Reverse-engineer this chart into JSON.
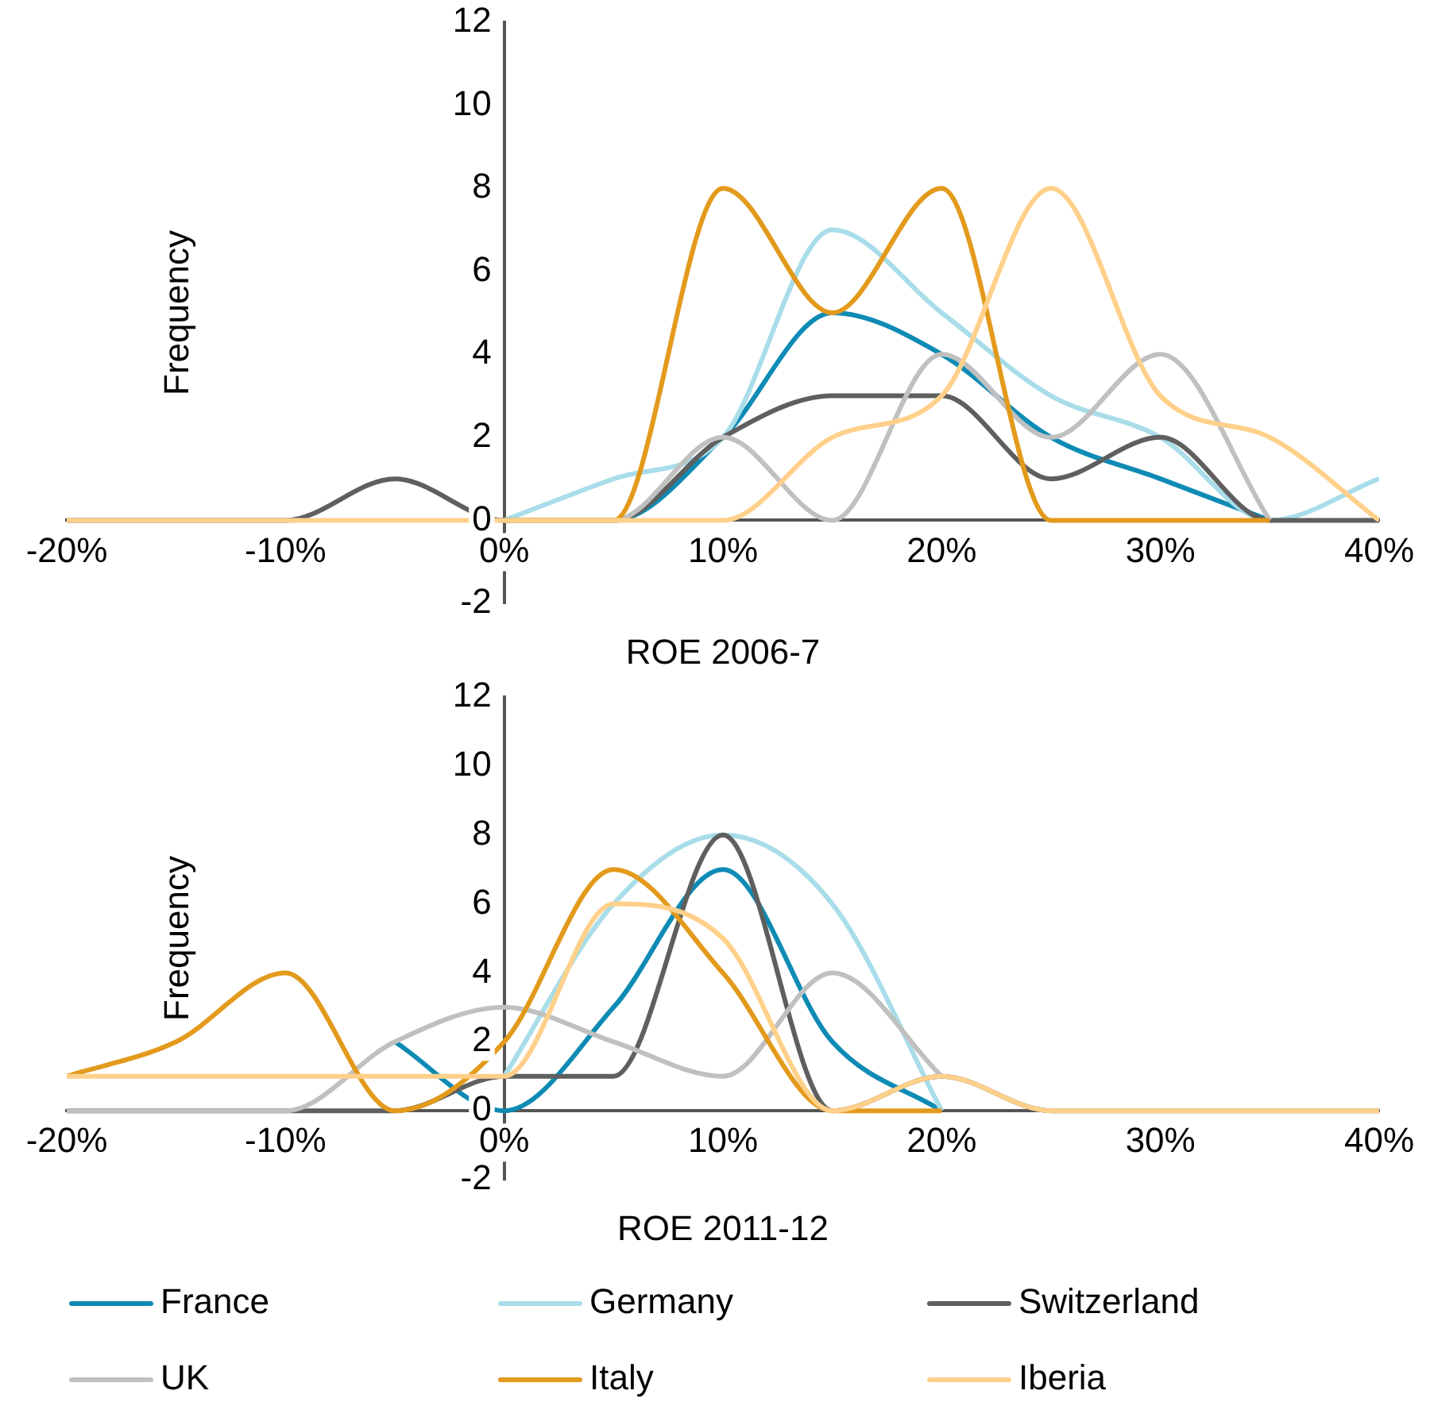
{
  "chart_data": [
    {
      "type": "line",
      "xlabel": "ROE 2006-7",
      "ylabel": "Frequency",
      "x": [
        -20,
        -15,
        -10,
        -5,
        0,
        5,
        10,
        15,
        20,
        25,
        30,
        35,
        40
      ],
      "xlim": [
        -20,
        40
      ],
      "xticks": [
        {
          "value": -20,
          "label": "-20%"
        },
        {
          "value": -10,
          "label": "-10%"
        },
        {
          "value": 0,
          "label": "0%"
        },
        {
          "value": 10,
          "label": "10%"
        },
        {
          "value": 20,
          "label": "20%"
        },
        {
          "value": 30,
          "label": "30%"
        },
        {
          "value": 40,
          "label": "40%"
        }
      ],
      "ylim": [
        -2,
        12
      ],
      "yticks": [
        -2,
        0,
        2,
        4,
        6,
        8,
        10,
        12
      ],
      "grid": false,
      "legend": false,
      "marker": "none",
      "series": [
        {
          "color": "#0e8bb5",
          "values": [
            null,
            null,
            null,
            null,
            0,
            0,
            2,
            5,
            4,
            2,
            1,
            0,
            null
          ]
        },
        {
          "color": "#a8dde9",
          "values": [
            null,
            null,
            null,
            null,
            0,
            1,
            2,
            7,
            5,
            3,
            2,
            0,
            1
          ]
        },
        {
          "color": "#5f5f5f",
          "values": [
            0,
            0,
            0,
            1,
            0,
            0,
            2,
            3,
            3,
            1,
            2,
            0,
            0
          ]
        },
        {
          "color": "#c0c0c0",
          "values": [
            null,
            null,
            null,
            null,
            0,
            0,
            2,
            0,
            4,
            2,
            4,
            0,
            null
          ]
        },
        {
          "color": "#e39a1c",
          "values": [
            null,
            null,
            null,
            null,
            0,
            0,
            8,
            5,
            8,
            0,
            0,
            0,
            null
          ]
        },
        {
          "color": "#ffd08a",
          "values": [
            0,
            0,
            0,
            0,
            0,
            0,
            0,
            2,
            3,
            8,
            3,
            2,
            0
          ]
        }
      ]
    },
    {
      "type": "line",
      "xlabel": "ROE 2011-12",
      "ylabel": "Frequency",
      "x": [
        -20,
        -15,
        -10,
        -5,
        0,
        5,
        10,
        15,
        20,
        25,
        30,
        35,
        40
      ],
      "xlim": [
        -20,
        40
      ],
      "xticks": [
        {
          "value": -20,
          "label": "-20%"
        },
        {
          "value": -10,
          "label": "-10%"
        },
        {
          "value": 0,
          "label": "0%"
        },
        {
          "value": 10,
          "label": "10%"
        },
        {
          "value": 20,
          "label": "20%"
        },
        {
          "value": 30,
          "label": "30%"
        },
        {
          "value": 40,
          "label": "40%"
        }
      ],
      "ylim": [
        -2,
        12
      ],
      "yticks": [
        -2,
        0,
        2,
        4,
        6,
        8,
        10,
        12
      ],
      "grid": false,
      "legend": "bottom",
      "marker": "none",
      "series": [
        {
          "name": "France",
          "color": "#0e8bb5",
          "values": [
            null,
            null,
            null,
            2,
            0,
            3,
            7,
            2,
            0,
            null,
            null,
            null,
            null
          ]
        },
        {
          "name": "Germany",
          "color": "#a8dde9",
          "values": [
            null,
            null,
            null,
            null,
            1,
            6,
            8,
            6,
            0,
            null,
            null,
            null,
            null
          ]
        },
        {
          "name": "Switzerland",
          "color": "#5f5f5f",
          "values": [
            0,
            0,
            0,
            0,
            1,
            1,
            8,
            0,
            1,
            0,
            0,
            0,
            0
          ]
        },
        {
          "name": "UK",
          "color": "#c0c0c0",
          "values": [
            0,
            0,
            0,
            2,
            3,
            2,
            1,
            4,
            1,
            null,
            null,
            null,
            null
          ]
        },
        {
          "name": "Italy",
          "color": "#e39a1c",
          "values": [
            1,
            2,
            4,
            0,
            2,
            7,
            4,
            0,
            0,
            null,
            null,
            null,
            null
          ]
        },
        {
          "name": "Iberia",
          "color": "#ffd08a",
          "values": [
            1,
            1,
            1,
            1,
            1,
            6,
            5,
            0,
            1,
            0,
            0,
            0,
            0
          ]
        }
      ]
    }
  ]
}
